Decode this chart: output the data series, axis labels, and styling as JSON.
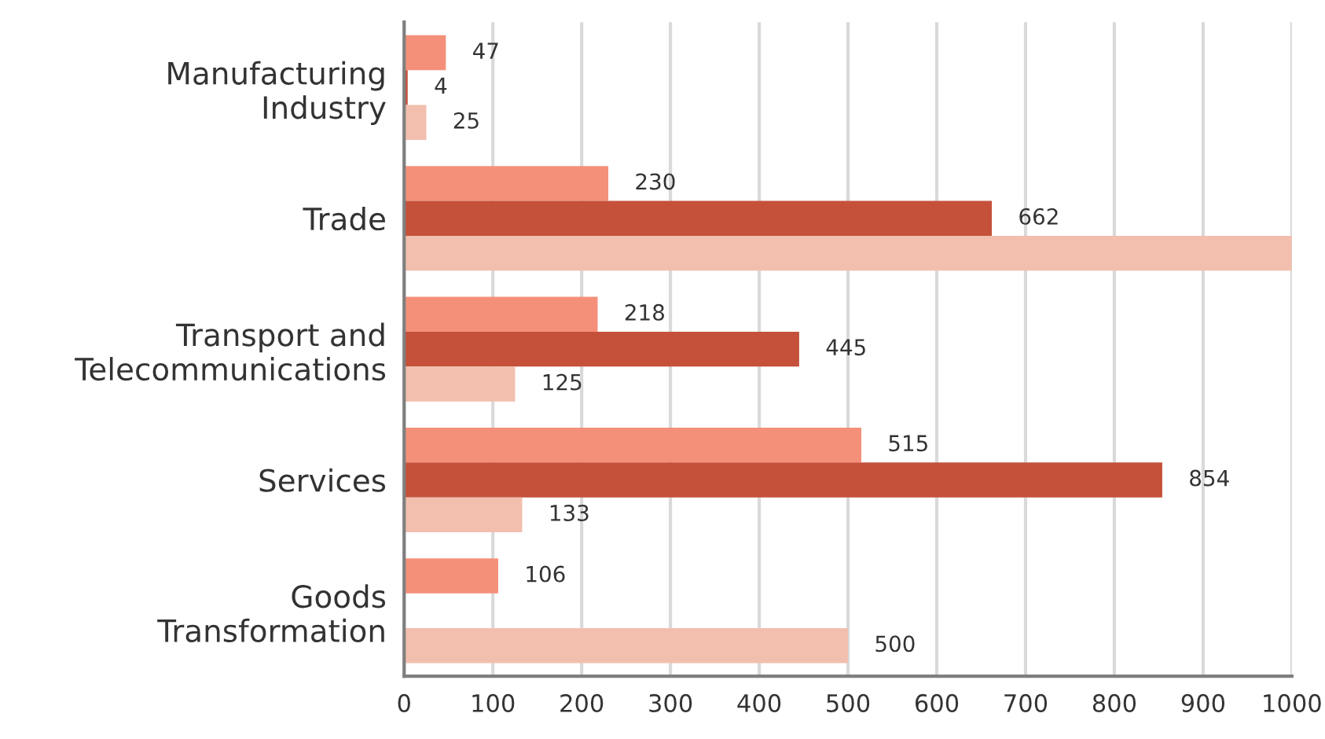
{
  "chart_data": {
    "type": "bar",
    "orientation": "horizontal",
    "categories": [
      "Manufacturing\nIndustry",
      "Trade",
      "Transport and\nTelecommunications",
      "Services",
      "Goods\nTransformation"
    ],
    "series": [
      {
        "color": "#f4907a",
        "values": [
          47,
          230,
          218,
          515,
          106
        ],
        "value_labels": [
          "47",
          "230",
          "218",
          "515",
          "106"
        ]
      },
      {
        "color": "#c5513a",
        "values": [
          4,
          662,
          445,
          854,
          null
        ],
        "value_labels": [
          "4",
          "662",
          "445",
          "854",
          null
        ]
      },
      {
        "color": "#f2bfae",
        "values": [
          25,
          1000,
          125,
          133,
          500
        ],
        "value_labels": [
          "25",
          null,
          "125",
          "133",
          "500"
        ]
      }
    ],
    "xlim": [
      0,
      1000
    ],
    "xticks": [
      0,
      100,
      200,
      300,
      400,
      500,
      600,
      700,
      800,
      900,
      1000
    ],
    "grid": "x",
    "legend": false
  }
}
